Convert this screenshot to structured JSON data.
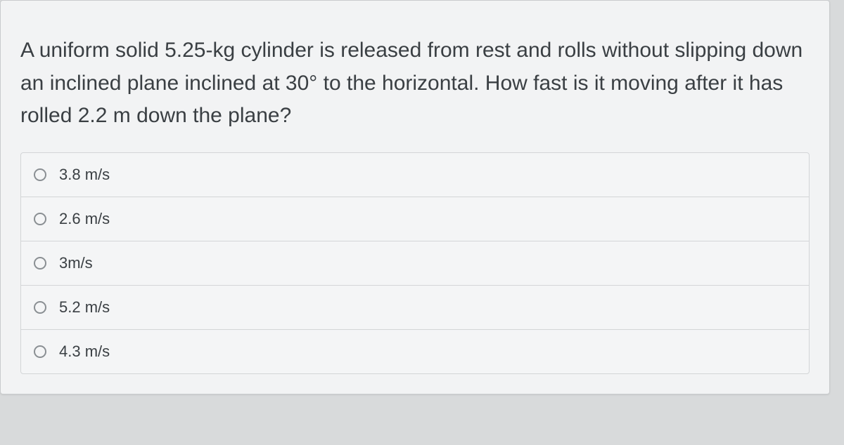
{
  "question": {
    "text": "A uniform solid 5.25-kg cylinder is released from rest and rolls without slipping down an inclined plane inclined at 30° to the horizontal. How fast is it moving after it has rolled  2.2 m down the plane?"
  },
  "options": [
    {
      "label": "3.8 m/s"
    },
    {
      "label": "2.6 m/s"
    },
    {
      "label": "3m/s"
    },
    {
      "label": "5.2 m/s"
    },
    {
      "label": "4.3 m/s"
    }
  ],
  "colors": {
    "page_bg": "#d8dadb",
    "card_bg": "#f2f3f4",
    "border": "#d3d5d7",
    "text": "#3a3f43",
    "radio_border": "#8a8f93"
  }
}
